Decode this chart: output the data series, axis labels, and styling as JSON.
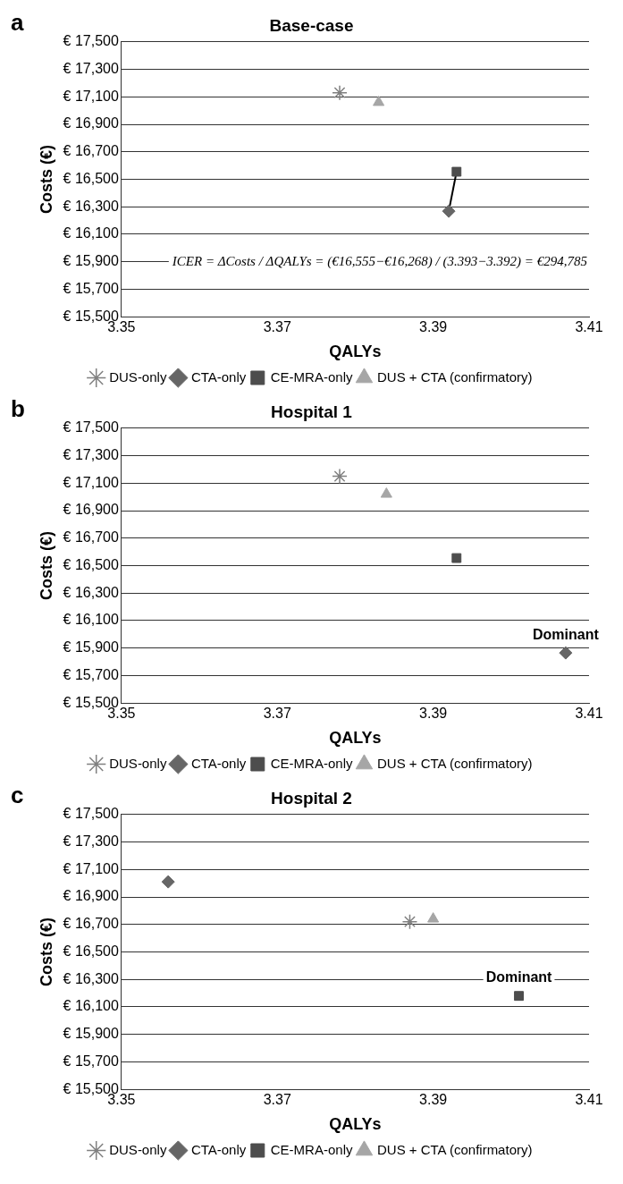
{
  "chart_data": [
    {
      "type": "scatter",
      "title": "Base-case",
      "xlabel": "QALYs",
      "ylabel": "Costs (€)",
      "xlim": [
        3.35,
        3.41
      ],
      "xticks": [
        3.35,
        3.37,
        3.39,
        3.41
      ],
      "ylim": [
        15500,
        17500
      ],
      "yticks": [
        {
          "value": 15500,
          "label": "€ 15,500"
        },
        {
          "value": 15700,
          "label": "€ 15,700"
        },
        {
          "value": 15900,
          "label": "€ 15,900"
        },
        {
          "value": 16100,
          "label": "€ 16,100"
        },
        {
          "value": 16300,
          "label": "€ 16,300"
        },
        {
          "value": 16500,
          "label": "€ 16,500"
        },
        {
          "value": 16700,
          "label": "€ 16,700"
        },
        {
          "value": 16900,
          "label": "€ 16,900"
        },
        {
          "value": 17100,
          "label": "€ 17,100"
        },
        {
          "value": 17300,
          "label": "€ 17,300"
        },
        {
          "value": 17500,
          "label": "€ 17,500"
        }
      ],
      "grid": "y",
      "legend": "bottom",
      "series": [
        {
          "name": "DUS-only",
          "color": "#808080",
          "marker": "cross",
          "x": [
            3.378
          ],
          "values": [
            17130
          ]
        },
        {
          "name": "CTA-only",
          "color": "#666666",
          "marker": "diamond",
          "x": [
            3.392
          ],
          "values": [
            16268
          ]
        },
        {
          "name": "CE-MRA-only",
          "color": "#4d4d4d",
          "marker": "square",
          "x": [
            3.393
          ],
          "values": [
            16555
          ]
        },
        {
          "name": "DUS + CTA (confirmatory)",
          "color": "#a6a6a6",
          "marker": "triangle",
          "x": [
            3.383
          ],
          "values": [
            17060
          ]
        },
        {
          "type": "line",
          "color": "#000000",
          "marker": "none",
          "x": [
            3.392,
            3.393
          ],
          "values": [
            16268,
            16555
          ]
        }
      ],
      "annotations": [
        "a",
        "ICER = ΔCosts / ΔQALYs = (€16,555−€16,268) / (3.393−3.392) = €294,785"
      ]
    },
    {
      "type": "scatter",
      "title": "Hospital 1",
      "xlabel": "QALYs",
      "ylabel": "Costs (€)",
      "xlim": [
        3.35,
        3.41
      ],
      "xticks": [
        3.35,
        3.37,
        3.39,
        3.41
      ],
      "ylim": [
        15500,
        17500
      ],
      "yticks": [
        {
          "value": 15500,
          "label": "€ 15,500"
        },
        {
          "value": 15700,
          "label": "€ 15,700"
        },
        {
          "value": 15900,
          "label": "€ 15,900"
        },
        {
          "value": 16100,
          "label": "€ 16,100"
        },
        {
          "value": 16300,
          "label": "€ 16,300"
        },
        {
          "value": 16500,
          "label": "€ 16,500"
        },
        {
          "value": 16700,
          "label": "€ 16,700"
        },
        {
          "value": 16900,
          "label": "€ 16,900"
        },
        {
          "value": 17100,
          "label": "€ 17,100"
        },
        {
          "value": 17300,
          "label": "€ 17,300"
        },
        {
          "value": 17500,
          "label": "€ 17,500"
        }
      ],
      "grid": "y",
      "legend": "bottom",
      "series": [
        {
          "name": "DUS-only",
          "color": "#808080",
          "marker": "cross",
          "x": [
            3.378
          ],
          "values": [
            17150
          ]
        },
        {
          "name": "CTA-only",
          "color": "#666666",
          "marker": "diamond",
          "x": [
            3.407
          ],
          "values": [
            15865
          ]
        },
        {
          "name": "CE-MRA-only",
          "color": "#4d4d4d",
          "marker": "square",
          "x": [
            3.393
          ],
          "values": [
            16555
          ]
        },
        {
          "name": "DUS + CTA (confirmatory)",
          "color": "#a6a6a6",
          "marker": "triangle",
          "x": [
            3.384
          ],
          "values": [
            17020
          ]
        }
      ],
      "annotations": [
        "b",
        {
          "text": "Dominant",
          "x": 3.407,
          "y": 15865
        }
      ]
    },
    {
      "type": "scatter",
      "title": "Hospital 2",
      "xlabel": "QALYs",
      "ylabel": "Costs (€)",
      "xlim": [
        3.35,
        3.41
      ],
      "xticks": [
        3.35,
        3.37,
        3.39,
        3.41
      ],
      "ylim": [
        15500,
        17500
      ],
      "yticks": [
        {
          "value": 15500,
          "label": "€ 15,500"
        },
        {
          "value": 15700,
          "label": "€ 15,700"
        },
        {
          "value": 15900,
          "label": "€ 15,900"
        },
        {
          "value": 16100,
          "label": "€ 16,100"
        },
        {
          "value": 16300,
          "label": "€ 16,300"
        },
        {
          "value": 16500,
          "label": "€ 16,500"
        },
        {
          "value": 16700,
          "label": "€ 16,700"
        },
        {
          "value": 16900,
          "label": "€ 16,900"
        },
        {
          "value": 17100,
          "label": "€ 17,100"
        },
        {
          "value": 17300,
          "label": "€ 17,300"
        },
        {
          "value": 17500,
          "label": "€ 17,500"
        }
      ],
      "grid": "y",
      "legend": "bottom",
      "series": [
        {
          "name": "DUS-only",
          "color": "#808080",
          "marker": "cross",
          "x": [
            3.387
          ],
          "values": [
            16720
          ]
        },
        {
          "name": "CTA-only",
          "color": "#666666",
          "marker": "diamond",
          "x": [
            3.356
          ],
          "values": [
            17010
          ]
        },
        {
          "name": "CE-MRA-only",
          "color": "#4d4d4d",
          "marker": "square",
          "x": [
            3.401
          ],
          "values": [
            16180
          ]
        },
        {
          "name": "DUS + CTA (confirmatory)",
          "color": "#a6a6a6",
          "marker": "triangle",
          "x": [
            3.39
          ],
          "values": [
            16740
          ]
        }
      ],
      "annotations": [
        "c",
        {
          "text": "Dominant",
          "x": 3.401,
          "y": 16180
        }
      ]
    }
  ]
}
